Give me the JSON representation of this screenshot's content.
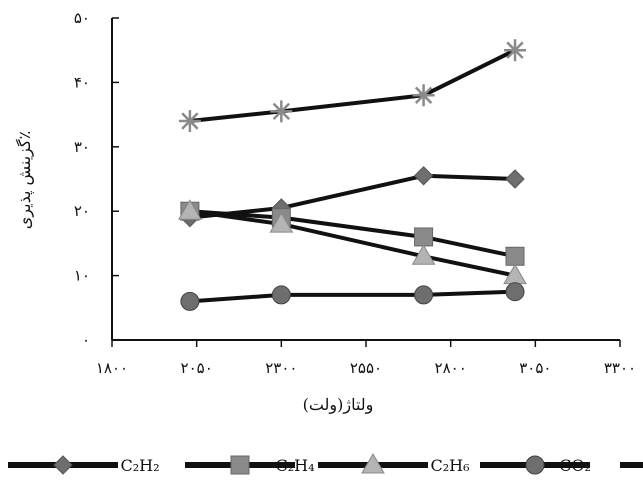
{
  "chart_data": {
    "type": "line",
    "xlabel": "ولتاژ(ولت)",
    "ylabel": "گزینش پذیری٪",
    "xlim": [
      1800,
      3300
    ],
    "ylim": [
      0,
      50
    ],
    "xticks": [
      1800,
      2050,
      2300,
      2550,
      2800,
      3050,
      3300
    ],
    "yticks": [
      0,
      10,
      20,
      30,
      40,
      50
    ],
    "xtick_labels": [
      "۱۸۰۰",
      "۲۰۵۰",
      "۲۳۰۰",
      "۲۵۵۰",
      "۲۸۰۰",
      "۳۰۵۰",
      "۳۳۰۰"
    ],
    "ytick_labels": [
      "۰",
      "۱۰",
      "۲۰",
      "۳۰",
      "۴۰",
      "۵۰"
    ],
    "grid": false,
    "legend": "bottom",
    "x": [
      2030,
      2300,
      2720,
      2990
    ],
    "series": [
      {
        "name": "C₂H₂",
        "marker": "diamond",
        "color": "#6e6e6e",
        "values": [
          19,
          20.5,
          25.5,
          25
        ]
      },
      {
        "name": "C₂H₄",
        "marker": "square",
        "color": "#8a8a8a",
        "values": [
          20,
          19,
          16,
          13
        ]
      },
      {
        "name": "C₂H₆",
        "marker": "triangle",
        "color": "#b4b4b4",
        "values": [
          20,
          18,
          13,
          10
        ]
      },
      {
        "name": "CO₂",
        "marker": "circle",
        "color": "#6e6e6e",
        "values": [
          6,
          7,
          7,
          7.5
        ]
      },
      {
        "name": "",
        "marker": "star",
        "color": "#8a8a8a",
        "values": [
          34,
          35.5,
          38,
          45
        ]
      }
    ]
  }
}
